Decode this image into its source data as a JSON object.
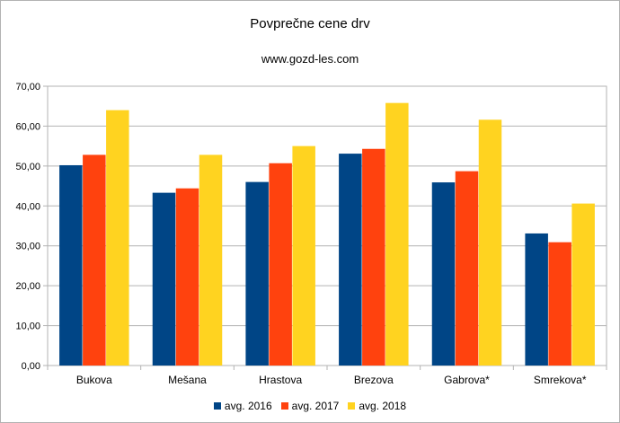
{
  "chart_data": {
    "type": "bar",
    "title": "Povprečne cene drv",
    "subtitle": "www.gozd-les.com",
    "categories": [
      "Bukova",
      "Mešana",
      "Hrastova",
      "Brezova",
      "Gabrova*",
      "Smrekova*"
    ],
    "series": [
      {
        "name": "avg. 2016",
        "color": "#004586",
        "values": [
          50.2,
          43.3,
          46.0,
          53.1,
          45.9,
          33.1
        ]
      },
      {
        "name": "avg. 2017",
        "color": "#ff420e",
        "values": [
          52.8,
          44.4,
          50.7,
          54.3,
          48.7,
          30.9
        ]
      },
      {
        "name": "avg. 2018",
        "color": "#ffd320",
        "values": [
          64.0,
          52.8,
          55.0,
          65.8,
          61.6,
          40.6
        ]
      }
    ],
    "yticks": [
      "0,00",
      "10,00",
      "20,00",
      "30,00",
      "40,00",
      "50,00",
      "60,00",
      "70,00"
    ],
    "ylim": [
      0,
      70
    ],
    "grid": true,
    "legend_position": "bottom"
  }
}
